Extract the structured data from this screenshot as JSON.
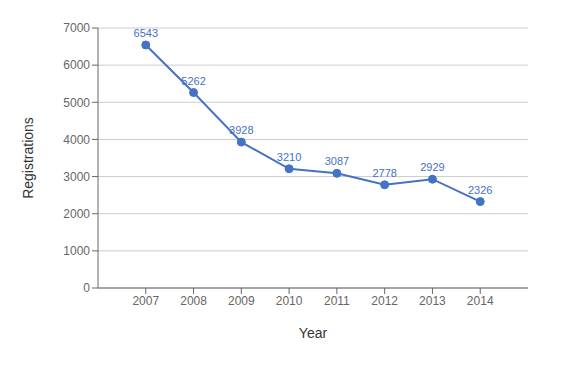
{
  "chart_data": {
    "type": "line",
    "x": [
      2007,
      2008,
      2009,
      2010,
      2011,
      2012,
      2013,
      2014
    ],
    "values": [
      6543,
      5262,
      3928,
      3210,
      3087,
      2778,
      2929,
      2326
    ],
    "color": "#4472C4",
    "marker": "circle",
    "xlabel": "Year",
    "ylabel": "Registrations",
    "xlim": [
      2006,
      2015
    ],
    "xticks": [
      2007,
      2008,
      2009,
      2010,
      2011,
      2012,
      2013,
      2014
    ],
    "ylim": [
      0,
      7000
    ],
    "yticks": [
      0,
      1000,
      2000,
      3000,
      4000,
      5000,
      6000,
      7000
    ],
    "grid": true,
    "data_labels": true
  }
}
